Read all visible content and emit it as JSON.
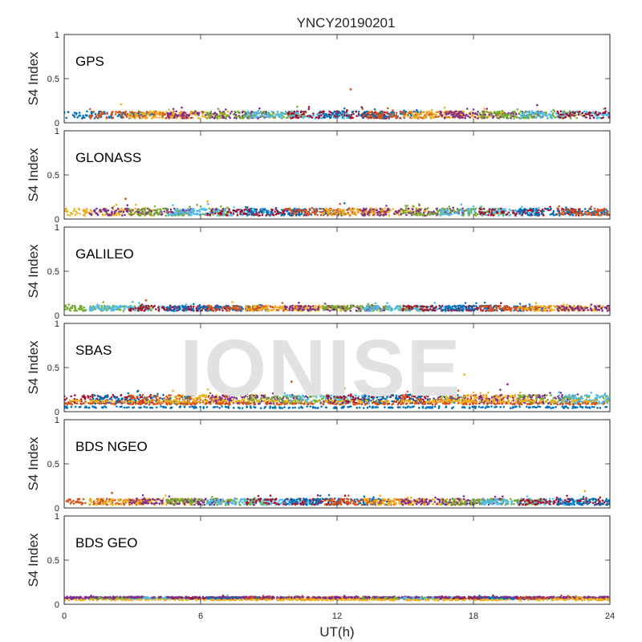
{
  "chart_data": {
    "type": "scatter",
    "title": "YNCY20190201",
    "xlabel": "UT(h)",
    "ylabel": "S4 Index",
    "xlim": [
      0,
      24
    ],
    "ylim": [
      0,
      1
    ],
    "x_ticks": [
      "0",
      "6",
      "12",
      "18",
      "24"
    ],
    "y_ticks": [
      "0",
      "0.5",
      "1"
    ],
    "watermark": "IONISE",
    "series_colors": [
      "#0072bd",
      "#d95319",
      "#edb120",
      "#7e2f8e",
      "#77ac30",
      "#4dbeee",
      "#a2142f"
    ],
    "panels": [
      {
        "label": "GPS",
        "baseline": 0.09,
        "spread": 0.04,
        "outliers": [
          {
            "x": 12.6,
            "y": 0.38
          },
          {
            "x": 2.5,
            "y": 0.21
          },
          {
            "x": 20.8,
            "y": 0.2
          }
        ]
      },
      {
        "label": "GLONASS",
        "baseline": 0.08,
        "spread": 0.04,
        "outliers": [
          {
            "x": 2.7,
            "y": 0.23
          },
          {
            "x": 6.3,
            "y": 0.2
          }
        ]
      },
      {
        "label": "GALILEO",
        "baseline": 0.08,
        "spread": 0.03,
        "outliers": [
          {
            "x": 3.6,
            "y": 0.17
          },
          {
            "x": 7.4,
            "y": 0.15
          }
        ]
      },
      {
        "label": "SBAS",
        "baseline": 0.14,
        "spread": 0.05,
        "outliers": [
          {
            "x": 10.0,
            "y": 0.34
          },
          {
            "x": 17.6,
            "y": 0.42
          },
          {
            "x": 19.5,
            "y": 0.31
          }
        ]
      },
      {
        "label": "BDS NGEO",
        "baseline": 0.07,
        "spread": 0.035,
        "outliers": [
          {
            "x": 2.1,
            "y": 0.17
          },
          {
            "x": 22.9,
            "y": 0.19
          }
        ]
      },
      {
        "label": "BDS GEO",
        "baseline": 0.07,
        "spread": 0.012,
        "outliers": []
      }
    ]
  }
}
